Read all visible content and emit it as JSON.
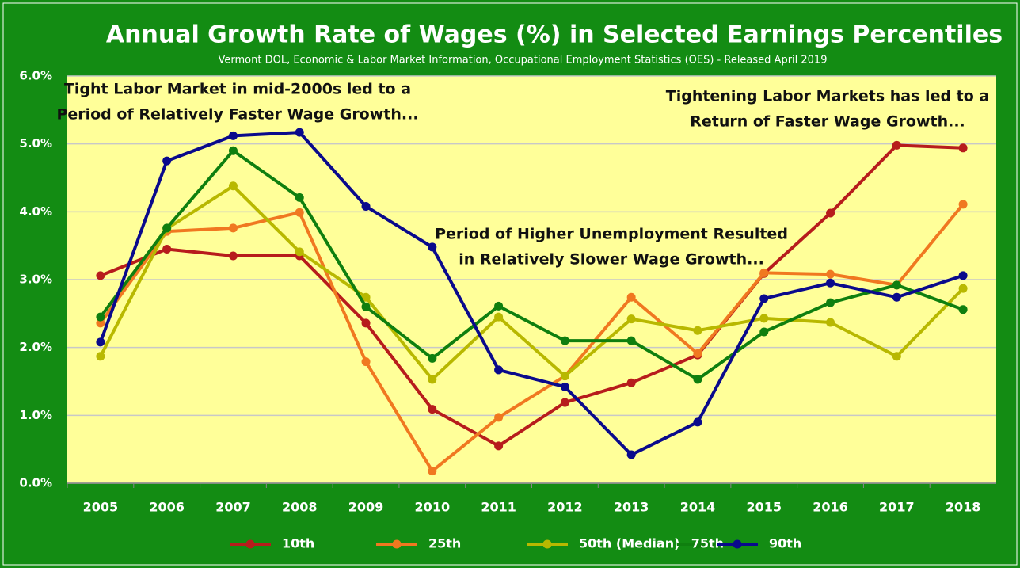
{
  "chart_data": {
    "type": "line",
    "title": "Annual Growth Rate of Wages (%) in Selected Earnings Percentiles",
    "subtitle": "Vermont DOL, Economic & Labor Market Information, Occupational Employment Statistics (OES)  - Released April 2019",
    "annotations": [
      [
        "Tight Labor Market in mid-2000s led to a",
        "Period of Relatively Faster Wage Growth..."
      ],
      [
        "Period of Higher Unemployment Resulted",
        "in Relatively Slower Wage Growth..."
      ],
      [
        "Tightening Labor Markets has led to a",
        "Return of Faster Wage Growth..."
      ]
    ],
    "categories": [
      "2005",
      "2006",
      "2007",
      "2008",
      "2009",
      "2010",
      "2011",
      "2012",
      "2013",
      "2014",
      "2015",
      "2016",
      "2017",
      "2018"
    ],
    "series": [
      {
        "name": "10th",
        "color": "#b71c1c",
        "values": [
          3.06,
          3.45,
          3.35,
          3.35,
          2.36,
          1.09,
          0.55,
          1.19,
          1.48,
          1.89,
          3.09,
          3.98,
          4.98,
          4.94
        ]
      },
      {
        "name": "25th",
        "color": "#f07820",
        "values": [
          2.36,
          3.71,
          3.76,
          3.99,
          1.79,
          0.18,
          0.97,
          1.58,
          2.74,
          1.91,
          3.1,
          3.08,
          2.92,
          4.11
        ]
      },
      {
        "name": "50th (Median)",
        "color": "#b8b800",
        "values": [
          1.87,
          3.75,
          4.38,
          3.41,
          2.74,
          1.53,
          2.45,
          1.58,
          2.42,
          2.25,
          2.43,
          2.37,
          1.87,
          2.87
        ]
      },
      {
        "name": "75th",
        "color": "#0f7f0f",
        "values": [
          2.45,
          3.76,
          4.9,
          4.21,
          2.6,
          1.84,
          2.61,
          2.1,
          2.1,
          1.53,
          2.23,
          2.66,
          2.92,
          2.56
        ]
      },
      {
        "name": "90th",
        "color": "#0a0a8c",
        "values": [
          2.08,
          4.75,
          5.12,
          5.17,
          4.08,
          3.48,
          1.67,
          1.42,
          0.42,
          0.9,
          2.72,
          2.95,
          2.74,
          3.06
        ]
      }
    ],
    "ylim": [
      0,
      6
    ],
    "yticks": [
      {
        "value": 0,
        "label": "0.0%"
      },
      {
        "value": 1,
        "label": "1.0%"
      },
      {
        "value": 2,
        "label": "2.0%"
      },
      {
        "value": 3,
        "label": "3.0%"
      },
      {
        "value": 4,
        "label": "4.0%"
      },
      {
        "value": 5,
        "label": "5.0%"
      },
      {
        "value": 6,
        "label": "6.0%"
      }
    ],
    "grid": true,
    "legend": "bottom"
  }
}
